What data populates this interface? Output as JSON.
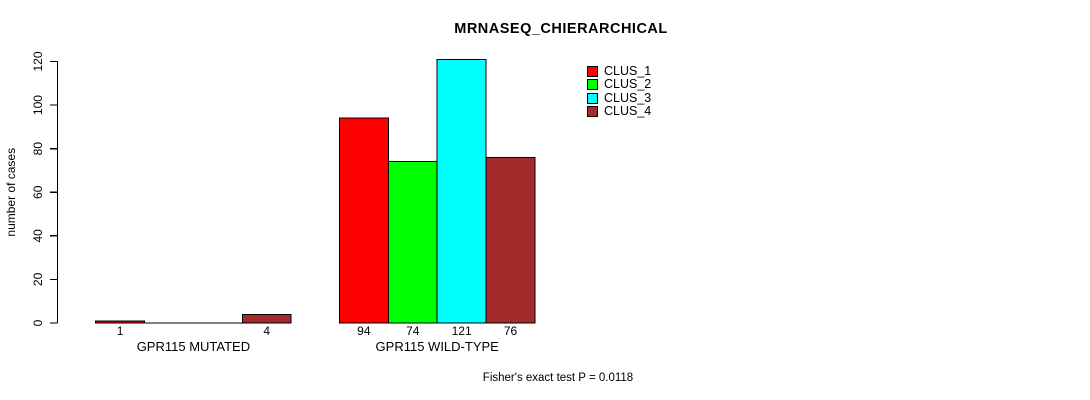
{
  "chart_data": {
    "type": "bar",
    "title": "MRNASEQ_CHIERARCHICAL",
    "xlabel": "",
    "ylabel": "number of cases",
    "categories": [
      "GPR115 MUTATED",
      "GPR115 WILD-TYPE"
    ],
    "series": [
      {
        "name": "CLUS_1",
        "color": "#FF0000",
        "values": [
          1,
          94
        ],
        "value_labels": [
          "1",
          "94"
        ]
      },
      {
        "name": "CLUS_2",
        "color": "#00FF00",
        "values": [
          0,
          74
        ],
        "value_labels": [
          "",
          "74"
        ]
      },
      {
        "name": "CLUS_3",
        "color": "#00FFFF",
        "values": [
          0,
          121
        ],
        "value_labels": [
          "",
          "121"
        ]
      },
      {
        "name": "CLUS_4",
        "color": "#A52A2A",
        "values": [
          4,
          76
        ],
        "value_labels": [
          "4",
          "76"
        ]
      }
    ],
    "yticks": [
      0,
      20,
      40,
      60,
      80,
      100,
      120
    ],
    "ylim": [
      0,
      121
    ],
    "grid": false,
    "legend_position": "top-right",
    "bar_border_color": "#000000",
    "axis_color": "#000000",
    "background": "#FFFFFF",
    "annotation": "Fisher's exact test P = 0.0118"
  }
}
